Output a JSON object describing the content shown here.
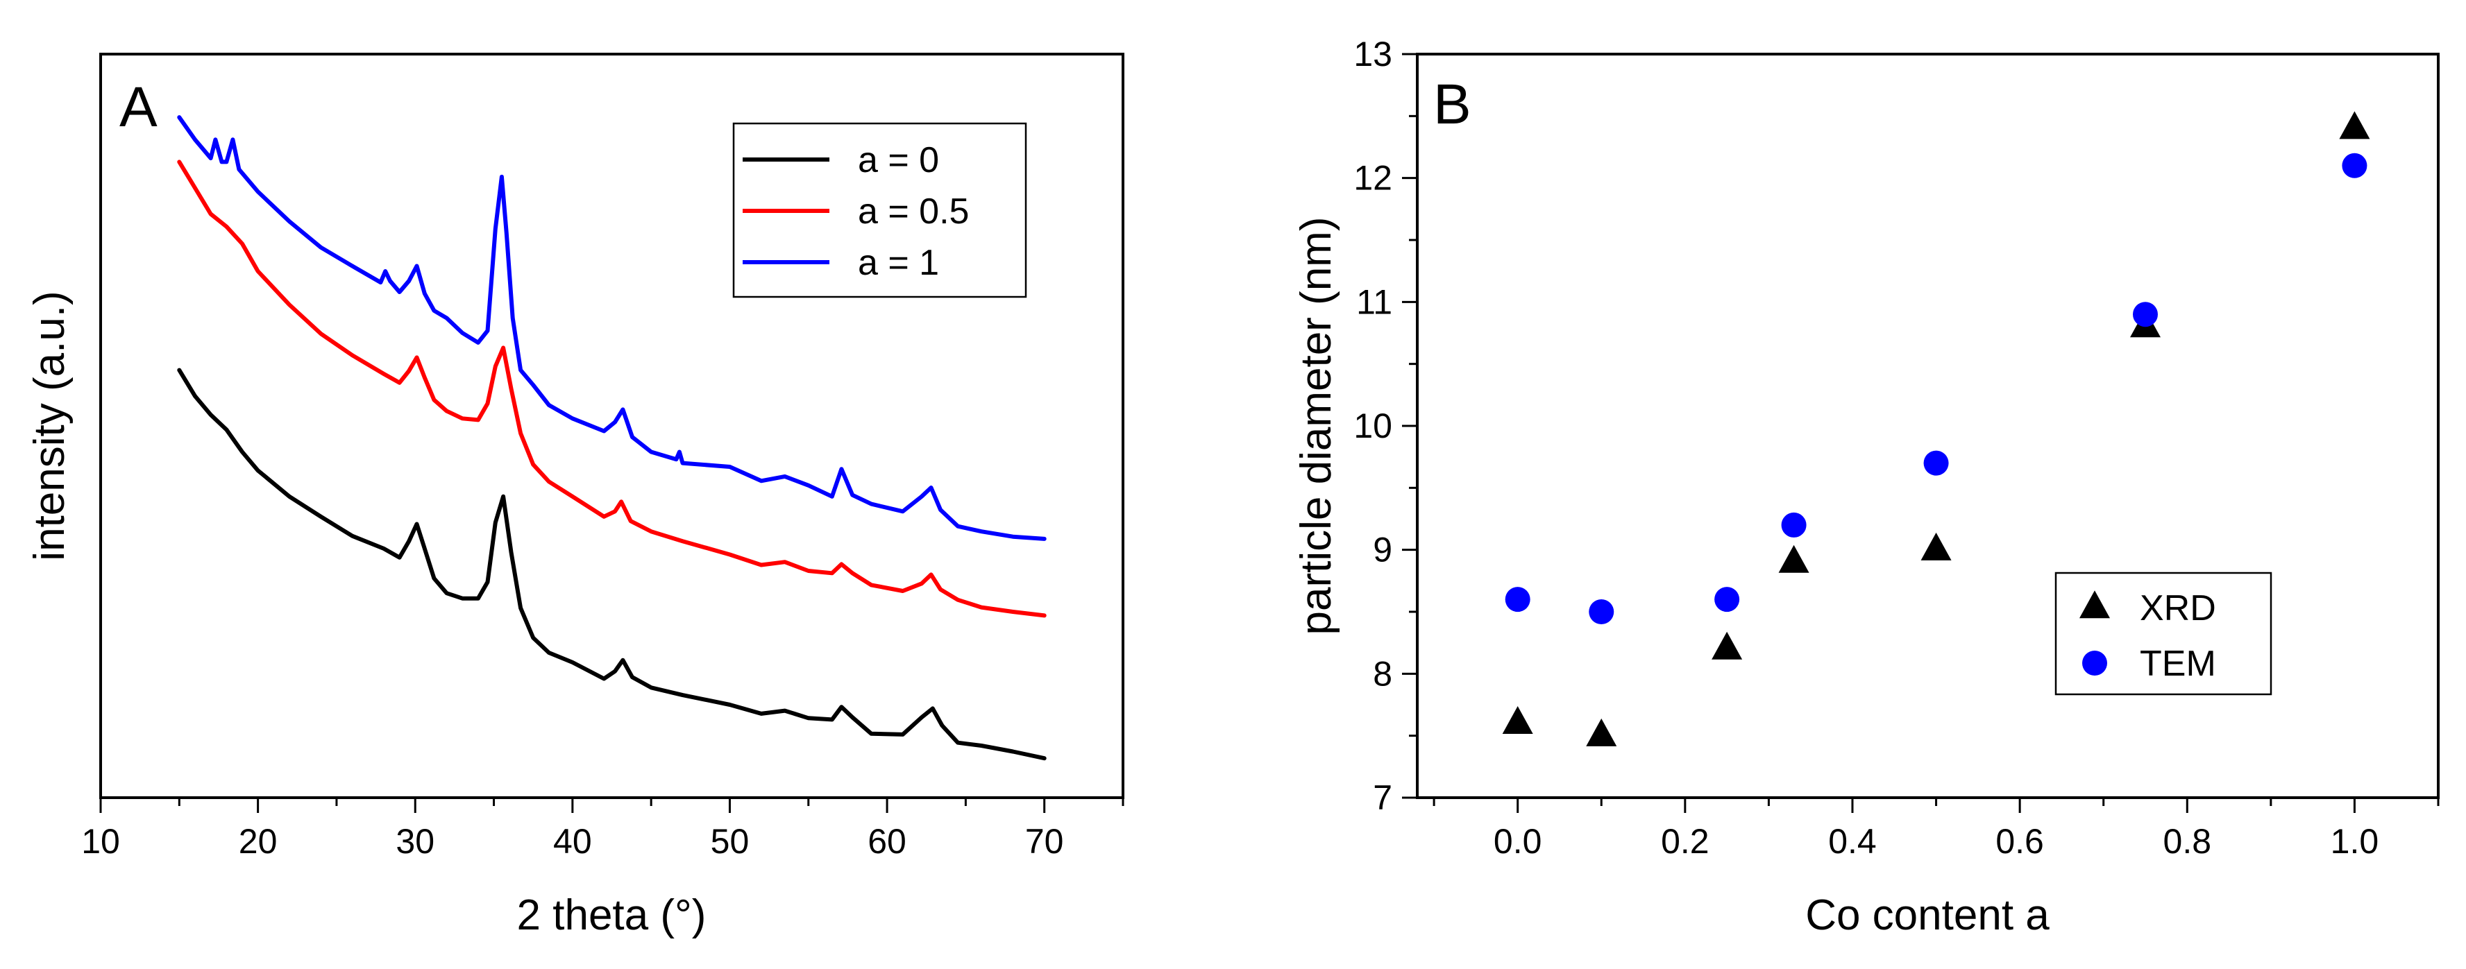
{
  "chart_data": [
    {
      "panel": "A",
      "type": "line",
      "xlabel": "2 theta (°)",
      "ylabel": "intensity (a.u.)",
      "xlim": [
        10,
        75
      ],
      "ylim": [
        0,
        100
      ],
      "xticks": [
        10,
        20,
        30,
        40,
        50,
        60,
        70
      ],
      "yticks_shown": false,
      "legend": "top-right",
      "series": [
        {
          "name": "a = 0",
          "color": "#000000",
          "x": [
            15,
            16,
            17,
            18,
            19,
            20,
            22,
            24,
            26,
            28,
            29,
            29.6,
            30.1,
            30.6,
            31.2,
            32,
            33,
            34,
            34.6,
            35.1,
            35.6,
            36.1,
            36.7,
            37.5,
            38.5,
            40,
            42,
            42.7,
            43.2,
            43.8,
            45,
            47,
            50,
            52,
            53.5,
            55,
            56.5,
            57.1,
            57.8,
            59,
            61,
            62.2,
            62.9,
            63.5,
            64.5,
            66,
            68,
            70
          ],
          "y": [
            57.5,
            54,
            51.5,
            49.5,
            46.5,
            44,
            40.5,
            37.8,
            35.2,
            33.5,
            32.3,
            34.5,
            36.8,
            33.5,
            29.5,
            27.5,
            26.8,
            26.8,
            29,
            37,
            40.5,
            33,
            25.5,
            21.5,
            19.5,
            18.2,
            16,
            17,
            18.5,
            16.2,
            14.8,
            13.8,
            12.5,
            11.3,
            11.7,
            10.7,
            10.5,
            12.2,
            10.8,
            8.6,
            8.5,
            10.8,
            12,
            9.7,
            7.4,
            7,
            6.2,
            5.3
          ]
        },
        {
          "name": "a = 0.5",
          "color": "#ff0000",
          "x": [
            15,
            16,
            17,
            18,
            19,
            20,
            22,
            24,
            26,
            28,
            29,
            29.6,
            30.1,
            30.6,
            31.2,
            32,
            33,
            34,
            34.6,
            35.1,
            35.6,
            36.1,
            36.7,
            37.5,
            38.5,
            40,
            42,
            42.7,
            43.1,
            43.7,
            45,
            47,
            50,
            52,
            53.5,
            55,
            56.5,
            57.1,
            57.8,
            59,
            61,
            62.2,
            62.8,
            63.4,
            64.5,
            66,
            68,
            70
          ],
          "y": [
            85.5,
            82,
            78.5,
            76.8,
            74.5,
            70.8,
            66.3,
            62.4,
            59.5,
            57,
            55.8,
            57.4,
            59.2,
            56.5,
            53.5,
            52,
            51,
            50.8,
            53,
            58,
            60.5,
            55,
            49,
            44.8,
            42.5,
            40.5,
            37.8,
            38.5,
            39.8,
            37.2,
            35.8,
            34.5,
            32.7,
            31.3,
            31.7,
            30.5,
            30.2,
            31.4,
            30.2,
            28.6,
            27.8,
            28.8,
            30,
            28,
            26.6,
            25.6,
            25,
            24.5
          ]
        },
        {
          "name": "a = 1",
          "color": "#0000ff",
          "x": [
            15,
            16,
            17,
            17.3,
            17.7,
            18,
            18.4,
            18.8,
            20,
            22,
            24,
            26,
            27.8,
            28.1,
            28.4,
            29,
            29.6,
            30.1,
            30.6,
            31.2,
            32,
            33,
            34,
            34.6,
            35.1,
            35.5,
            35.8,
            36.2,
            36.7,
            37.5,
            38.5,
            40,
            42,
            42.7,
            43.2,
            43.8,
            45,
            46.6,
            46.8,
            47,
            50,
            52,
            53.5,
            55,
            56.5,
            57.1,
            57.8,
            59,
            61,
            62.2,
            62.8,
            63.4,
            64.5,
            66,
            68,
            70
          ],
          "y": [
            91.5,
            88.5,
            86,
            88.5,
            85.5,
            85.5,
            88.5,
            84.5,
            81.5,
            77.5,
            74,
            71.5,
            69.3,
            70.8,
            69.5,
            68,
            69.5,
            71.5,
            67.8,
            65.5,
            64.5,
            62.5,
            61.2,
            62.8,
            76.5,
            83.5,
            76,
            64.5,
            57.5,
            55.5,
            52.8,
            51,
            49.3,
            50.5,
            52.2,
            48.5,
            46.5,
            45.5,
            46.5,
            45,
            44.5,
            42.6,
            43.2,
            42,
            40.5,
            44.2,
            40.7,
            39.5,
            38.5,
            40.5,
            41.7,
            38.7,
            36.5,
            35.8,
            35.1,
            34.8
          ]
        }
      ],
      "panel_label": "A"
    },
    {
      "panel": "B",
      "type": "scatter",
      "xlabel": "Co content a",
      "ylabel": "particle diameter (nm)",
      "xlim": [
        -0.12,
        1.1
      ],
      "ylim": [
        7,
        13
      ],
      "xticks": [
        0.0,
        0.2,
        0.4,
        0.6,
        0.8,
        1.0
      ],
      "xtick_labels": [
        "0.0",
        "0.2",
        "0.4",
        "0.6",
        "0.8",
        "1.0"
      ],
      "yticks": [
        7,
        8,
        9,
        10,
        11,
        12,
        13
      ],
      "legend": "bottom-right",
      "series": [
        {
          "name": "XRD",
          "marker": "triangle",
          "color": "#000000",
          "x": [
            0.0,
            0.1,
            0.25,
            0.33,
            0.5,
            0.75,
            1.0
          ],
          "y": [
            7.6,
            7.5,
            8.2,
            8.9,
            9.0,
            10.8,
            12.4
          ]
        },
        {
          "name": "TEM",
          "marker": "circle",
          "color": "#0000ff",
          "x": [
            0.0,
            0.1,
            0.25,
            0.33,
            0.5,
            0.75,
            1.0
          ],
          "y": [
            8.6,
            8.5,
            8.6,
            9.2,
            9.7,
            10.9,
            12.1
          ]
        }
      ],
      "panel_label": "B"
    }
  ]
}
